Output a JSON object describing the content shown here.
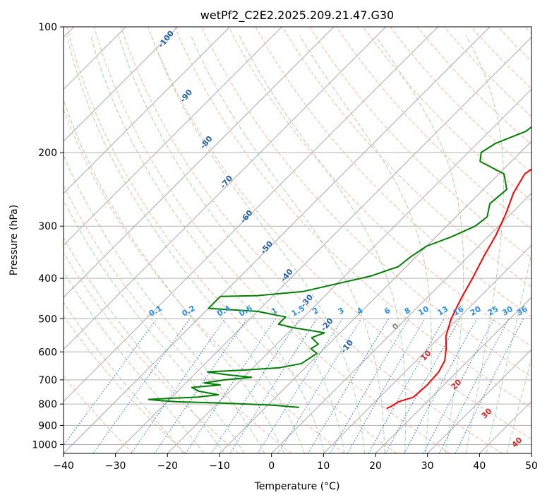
{
  "chart_data": {
    "type": "line",
    "title": "wetPf2_C2E2.2025.209.21.47.G30",
    "xlabel": "Temperature (°C)",
    "ylabel": "Pressure (hPa)",
    "xlim": [
      -40,
      50
    ],
    "ylim": [
      1050,
      100
    ],
    "y_scale": "log",
    "grid": true,
    "x_ticks": [
      -40,
      -30,
      -20,
      -10,
      0,
      10,
      20,
      30,
      40,
      50
    ],
    "x_tick_labels": [
      "−40",
      "−30",
      "−20",
      "−10",
      "0",
      "10",
      "20",
      "30",
      "40",
      "50"
    ],
    "y_ticks": [
      100,
      200,
      300,
      400,
      500,
      600,
      700,
      800,
      900,
      1000
    ],
    "y_tick_labels": [
      "100",
      "200",
      "300",
      "400",
      "500",
      "600",
      "700",
      "800",
      "900",
      "1000"
    ],
    "series": [
      {
        "role": "temperature",
        "color": "#ff0000",
        "points": [
          [
            13.5,
            820
          ],
          [
            14,
            810
          ],
          [
            14.5,
            790
          ],
          [
            16.5,
            770
          ],
          [
            16.8,
            720
          ],
          [
            16.5,
            670
          ],
          [
            15.5,
            630
          ],
          [
            13.5,
            590
          ],
          [
            11,
            550
          ],
          [
            8.7,
            500
          ],
          [
            6.8,
            450
          ],
          [
            5,
            400
          ],
          [
            3,
            355
          ],
          [
            1.2,
            315
          ],
          [
            -1,
            280
          ],
          [
            -3.5,
            250
          ],
          [
            -5,
            225
          ],
          [
            -4,
            210
          ],
          [
            -2,
            200
          ],
          [
            0.5,
            190
          ],
          [
            3,
            178
          ],
          [
            5,
            160
          ],
          [
            6.5,
            150
          ],
          [
            8,
            140
          ],
          [
            9.8,
            130
          ],
          [
            11,
            122
          ],
          [
            12,
            116
          ],
          [
            14,
            110
          ],
          [
            16.5,
            105
          ],
          [
            17.5,
            100
          ]
        ]
      },
      {
        "role": "dewpoint",
        "color": "#008000",
        "points": [
          [
            -3.5,
            815
          ],
          [
            -9,
            805
          ],
          [
            -20,
            795
          ],
          [
            -28,
            790
          ],
          [
            -31.5,
            785
          ],
          [
            -34,
            780
          ],
          [
            -30,
            775
          ],
          [
            -25,
            770
          ],
          [
            -21.5,
            760
          ],
          [
            -26,
            745
          ],
          [
            -28,
            730
          ],
          [
            -23,
            720
          ],
          [
            -26.5,
            712
          ],
          [
            -23,
            700
          ],
          [
            -18.5,
            690
          ],
          [
            -24,
            680
          ],
          [
            -28,
            670
          ],
          [
            -21,
            663
          ],
          [
            -15,
            655
          ],
          [
            -11.5,
            640
          ],
          [
            -10.5,
            605
          ],
          [
            -12.5,
            590
          ],
          [
            -12,
            575
          ],
          [
            -14.5,
            555
          ],
          [
            -13,
            540
          ],
          [
            -20,
            525
          ],
          [
            -23.5,
            515
          ],
          [
            -23.5,
            495
          ],
          [
            -30,
            480
          ],
          [
            -40,
            472
          ],
          [
            -40,
            442
          ],
          [
            -33,
            440
          ],
          [
            -25,
            430
          ],
          [
            -15,
            395
          ],
          [
            -11.5,
            375
          ],
          [
            -11,
            355
          ],
          [
            -10,
            335
          ],
          [
            -7,
            318
          ],
          [
            -4.5,
            300
          ],
          [
            -4,
            285
          ],
          [
            -6,
            265
          ],
          [
            -5.5,
            245
          ],
          [
            -9,
            225
          ],
          [
            -16,
            210
          ],
          [
            -17.5,
            200
          ],
          [
            -16.5,
            190
          ],
          [
            -13,
            178
          ],
          [
            -12.5,
            170
          ],
          [
            -12.5,
            160
          ],
          [
            -9,
            150
          ],
          [
            -6.5,
            140
          ],
          [
            -5,
            130
          ],
          [
            -4.5,
            125
          ],
          [
            -3,
            118
          ],
          [
            -1.5,
            110
          ],
          [
            -0.5,
            106
          ],
          [
            0.5,
            100
          ]
        ]
      }
    ],
    "mixing_ratio_labels": [
      "0.1",
      "0.2",
      "0.4",
      "0.6",
      "1",
      "1.5",
      "2",
      "3",
      "4",
      "6",
      "8",
      "10",
      "13",
      "16",
      "20",
      "25",
      "30",
      "36"
    ],
    "mixing_ratio_values": [
      0.1,
      0.2,
      0.4,
      0.6,
      1,
      1.5,
      2,
      3,
      4,
      6,
      8,
      10,
      13,
      16,
      20,
      25,
      30,
      36
    ],
    "dry_adiabat_labels": [
      "-100",
      "-90",
      "-80",
      "-70",
      "-60",
      "-50",
      "-40",
      "-30",
      "-20",
      "-10"
    ],
    "dry_adiabat_values": [
      -100,
      -90,
      -80,
      -70,
      -60,
      -50,
      -40,
      -30,
      -20,
      -10
    ],
    "moist_adiabat_labels": [
      "0",
      "10",
      "20",
      "30",
      "40"
    ],
    "moist_adiabat_values": [
      0,
      10,
      20,
      30,
      40
    ],
    "colors": {
      "temperature": "#ff0000",
      "dewpoint": "#008000",
      "isotherm": "#aaaaaa",
      "dry_adiabat": "#ffb49c",
      "moist_adiabat": "#a8d4a8",
      "mixing_ratio": "#1f77e0",
      "dry_label": "#1f5ea8",
      "mixing_label": "#2a8fe8",
      "moist_label": "#d62728",
      "moist_label_zero": "#888888"
    }
  }
}
